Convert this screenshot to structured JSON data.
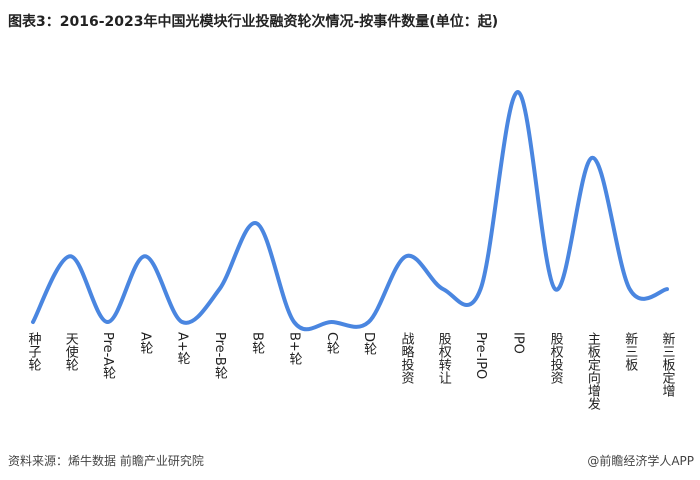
{
  "chart_data": {
    "type": "line",
    "title": "图表3：2016-2023年中国光模块行业投融资轮次情况-按事件数量(单位：起)",
    "categories": [
      "种子轮",
      "天使轮",
      "Pre-A轮",
      "A轮",
      "A+轮",
      "Pre-B轮",
      "B轮",
      "B+轮",
      "C轮",
      "D轮",
      "战略投资",
      "股权转让",
      "Pre-IPO",
      "IPO",
      "股权投资",
      "主板定向增发",
      "新三板",
      "新三板定增"
    ],
    "values": [
      0,
      2,
      0,
      2,
      0,
      1,
      3,
      0,
      0,
      0,
      2,
      1,
      1,
      7,
      1,
      5,
      1,
      1
    ],
    "color": "#4a86e0",
    "ylim": [
      0,
      7
    ],
    "source": "资料来源：烯牛数据 前瞻产业研究院",
    "credit": "@前瞻经济学人APP"
  }
}
